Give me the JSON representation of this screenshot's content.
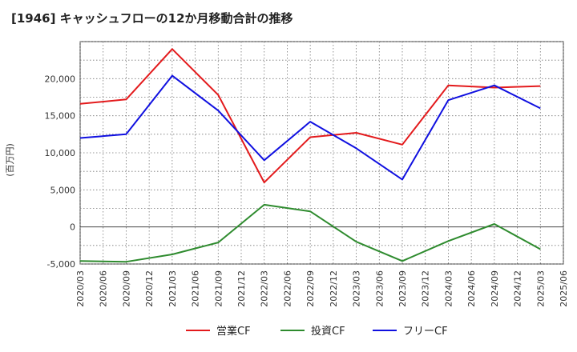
{
  "chart_data": {
    "type": "line",
    "title": "[1946]  キャッシュフローの12か月移動合計の推移",
    "ylabel": "(百万円)",
    "xlabel": "",
    "ylim": [
      -5000,
      25000
    ],
    "xlim": [
      "2020/03",
      "2025/06"
    ],
    "yticks": [
      -5000,
      0,
      5000,
      10000,
      15000,
      20000
    ],
    "ytick_labels": [
      "-5,000",
      "0",
      "5,000",
      "10,000",
      "15,000",
      "20,000"
    ],
    "xtick_labels": [
      "2020/03",
      "2020/06",
      "2020/09",
      "2020/12",
      "2021/03",
      "2021/06",
      "2021/09",
      "2021/12",
      "2022/03",
      "2022/06",
      "2022/09",
      "2022/12",
      "2023/03",
      "2023/06",
      "2023/09",
      "2023/12",
      "2024/03",
      "2024/06",
      "2024/09",
      "2024/12",
      "2025/03",
      "2025/06"
    ],
    "grid": true,
    "series": [
      {
        "name": "営業CF",
        "color": "#e31a1c",
        "x": [
          "2020/03",
          "2020/09",
          "2021/03",
          "2021/09",
          "2022/03",
          "2022/09",
          "2023/03",
          "2023/09",
          "2024/03",
          "2024/09",
          "2025/03"
        ],
        "values": [
          16600,
          17200,
          24000,
          17800,
          6000,
          12100,
          12700,
          11100,
          19100,
          18800,
          19000
        ]
      },
      {
        "name": "投資CF",
        "color": "#2e8b2e",
        "x": [
          "2020/03",
          "2020/09",
          "2021/03",
          "2021/09",
          "2022/03",
          "2022/09",
          "2023/03",
          "2023/09",
          "2024/03",
          "2024/09",
          "2025/03"
        ],
        "values": [
          -4600,
          -4700,
          -3700,
          -2100,
          3000,
          2100,
          -2000,
          -4600,
          -1900,
          400,
          -3000
        ]
      },
      {
        "name": "フリーCF",
        "color": "#1010e0",
        "x": [
          "2020/03",
          "2020/09",
          "2021/03",
          "2021/09",
          "2022/03",
          "2022/09",
          "2023/03",
          "2023/09",
          "2024/03",
          "2024/09",
          "2025/03"
        ],
        "values": [
          12000,
          12500,
          20400,
          15700,
          9000,
          14200,
          10600,
          6400,
          17100,
          19100,
          16000
        ]
      }
    ],
    "legend_position": "bottom"
  }
}
